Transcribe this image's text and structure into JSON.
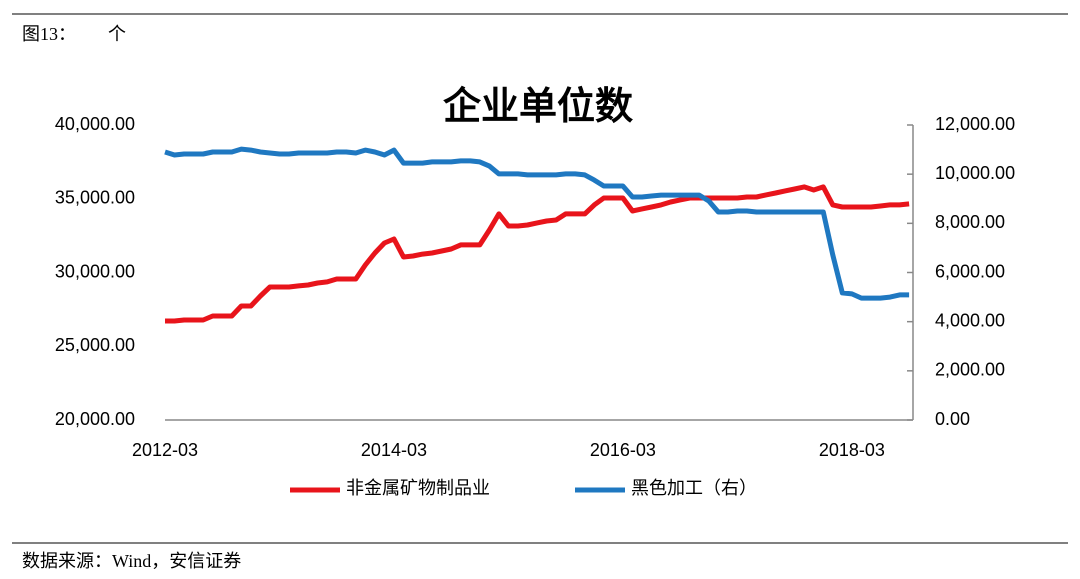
{
  "header": {
    "figure": "图13：",
    "unit": "个"
  },
  "chart_data": {
    "type": "line",
    "title": "企业单位数",
    "categories": [
      "2012-03",
      null,
      null,
      null,
      null,
      null,
      null,
      null,
      null,
      null,
      null,
      null,
      null,
      null,
      null,
      null,
      null,
      null,
      null,
      null,
      null,
      null,
      null,
      null,
      "2014-03",
      null,
      null,
      null,
      null,
      null,
      null,
      null,
      null,
      null,
      null,
      null,
      null,
      null,
      null,
      null,
      null,
      null,
      null,
      null,
      null,
      null,
      null,
      null,
      "2016-03",
      null,
      null,
      null,
      null,
      null,
      null,
      null,
      null,
      null,
      null,
      null,
      null,
      null,
      null,
      null,
      null,
      null,
      null,
      null,
      null,
      null,
      null,
      null,
      "2018-03",
      null,
      null,
      null,
      null,
      null,
      null
    ],
    "series": [
      {
        "name": "非金属矿物制品业",
        "color": "#e8141b",
        "axis": "y",
        "values": [
          26710,
          26710,
          26780,
          26780,
          26780,
          27050,
          27050,
          27050,
          27730,
          27730,
          28410,
          29020,
          29020,
          29020,
          29090,
          29150,
          29290,
          29360,
          29560,
          29560,
          29560,
          30510,
          31320,
          32000,
          32270,
          31050,
          31120,
          31250,
          31320,
          31460,
          31590,
          31870,
          31870,
          31870,
          32880,
          33970,
          33150,
          33150,
          33220,
          33360,
          33490,
          33560,
          33970,
          33970,
          33970,
          34580,
          35050,
          35050,
          35050,
          34170,
          34310,
          34440,
          34580,
          34780,
          34920,
          35050,
          35050,
          35050,
          35050,
          35050,
          35050,
          35120,
          35120,
          35260,
          35390,
          35530,
          35660,
          35800,
          35590,
          35800,
          34580,
          34440,
          34440,
          34440,
          34440,
          34510,
          34580,
          34580,
          34650
        ]
      },
      {
        "name": "黑色加工（右）",
        "color": "#1f78c1",
        "axis": "y2",
        "values": [
          10900,
          10780,
          10820,
          10820,
          10820,
          10900,
          10900,
          10900,
          11020,
          10980,
          10900,
          10860,
          10820,
          10820,
          10860,
          10860,
          10860,
          10860,
          10900,
          10900,
          10860,
          10980,
          10900,
          10780,
          10980,
          10450,
          10450,
          10450,
          10500,
          10500,
          10500,
          10540,
          10540,
          10500,
          10330,
          10010,
          10010,
          10010,
          9970,
          9970,
          9970,
          9970,
          10010,
          10010,
          9970,
          9760,
          9520,
          9520,
          9520,
          9070,
          9070,
          9110,
          9150,
          9150,
          9150,
          9150,
          9150,
          8910,
          8460,
          8460,
          8500,
          8500,
          8460,
          8460,
          8460,
          8460,
          8460,
          8460,
          8460,
          8460,
          6710,
          5170,
          5130,
          4960,
          4960,
          4960,
          5000,
          5090,
          5090
        ]
      }
    ],
    "ylim": [
      20000,
      40000
    ],
    "yticks": [
      {
        "value": 20000,
        "label": "20,000.00"
      },
      {
        "value": 25000,
        "label": "25,000.00"
      },
      {
        "value": 30000,
        "label": "30,000.00"
      },
      {
        "value": 35000,
        "label": "35,000.00"
      },
      {
        "value": 40000,
        "label": "40,000.00"
      }
    ],
    "y2lim": [
      0,
      12000
    ],
    "y2ticks": [
      {
        "value": 0,
        "label": "0.00"
      },
      {
        "value": 2000,
        "label": "2,000.00"
      },
      {
        "value": 4000,
        "label": "4,000.00"
      },
      {
        "value": 6000,
        "label": "6,000.00"
      },
      {
        "value": 8000,
        "label": "8,000.00"
      },
      {
        "value": 10000,
        "label": "10,000.00"
      },
      {
        "value": 12000,
        "label": "12,000.00"
      }
    ],
    "legend": "bottom"
  },
  "footer": {
    "source": "数据来源：Wind，安信证券"
  }
}
